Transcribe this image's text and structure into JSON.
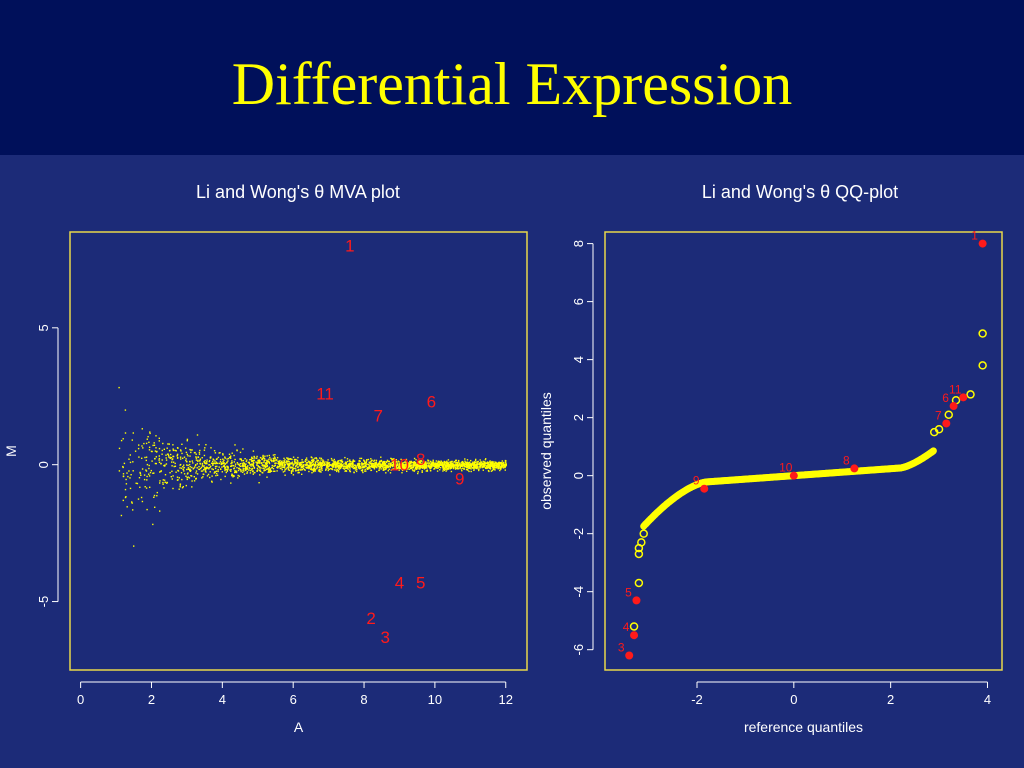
{
  "slide": {
    "title": "Differential Expression"
  },
  "colors": {
    "background": "#00105a",
    "plot_background": "#1c2b78",
    "title": "#ffff00",
    "points": "#ffff00",
    "highlight": "#ff1a1a",
    "frame": "#e8d84a"
  },
  "chart_data": [
    {
      "type": "scatter",
      "title": "Li and Wong's θ MVA plot",
      "xlabel": "A",
      "ylabel": "M",
      "xlim": [
        -0.3,
        12.6
      ],
      "ylim": [
        -7.5,
        8.5
      ],
      "xticks": [
        0,
        2,
        4,
        6,
        8,
        10,
        12
      ],
      "yticks": [
        -5,
        0,
        5
      ],
      "grid": false,
      "cloud": {
        "description_free": true,
        "a_range": [
          1,
          12
        ],
        "m_center": 0
      },
      "series": [
        {
          "values": []
        }
      ],
      "labeled_points": [
        {
          "label": "1",
          "x": 7.6,
          "y": 8.0
        },
        {
          "label": "11",
          "x": 6.9,
          "y": 2.6
        },
        {
          "label": "7",
          "x": 8.4,
          "y": 1.8
        },
        {
          "label": "6",
          "x": 9.9,
          "y": 2.3
        },
        {
          "label": "8",
          "x": 9.6,
          "y": 0.2
        },
        {
          "label": "10",
          "x": 9.0,
          "y": 0.0
        },
        {
          "label": "9",
          "x": 10.7,
          "y": -0.5
        },
        {
          "label": "4",
          "x": 9.0,
          "y": -4.3
        },
        {
          "label": "5",
          "x": 9.6,
          "y": -4.3
        },
        {
          "label": "2",
          "x": 8.2,
          "y": -5.6
        },
        {
          "label": "3",
          "x": 8.6,
          "y": -6.3
        }
      ]
    },
    {
      "type": "scatter",
      "title": "Li and Wong's θ QQ-plot",
      "xlabel": "reference quantiles",
      "ylabel": "observed quantiles",
      "xlim": [
        -3.9,
        4.3
      ],
      "ylim": [
        -6.7,
        8.4
      ],
      "xticks": [
        -2,
        0,
        2,
        4
      ],
      "yticks": [
        -6,
        -4,
        -2,
        0,
        2,
        4,
        6,
        8
      ],
      "grid": false,
      "open_points": [
        {
          "x": 3.9,
          "y": 4.9
        },
        {
          "x": 3.9,
          "y": 3.8
        },
        {
          "x": 3.65,
          "y": 2.8
        },
        {
          "x": 3.35,
          "y": 2.6
        },
        {
          "x": 3.2,
          "y": 2.1
        },
        {
          "x": 3.0,
          "y": 1.6
        },
        {
          "x": 2.9,
          "y": 1.5
        },
        {
          "x": -3.2,
          "y": -3.7
        },
        {
          "x": -3.3,
          "y": -5.2
        },
        {
          "x": -3.2,
          "y": -2.7
        },
        {
          "x": -3.2,
          "y": -2.5
        },
        {
          "x": -3.15,
          "y": -2.3
        },
        {
          "x": -3.1,
          "y": -2.0
        }
      ],
      "labeled_points": [
        {
          "label": "1",
          "x": 3.9,
          "y": 8.0
        },
        {
          "label": "11",
          "x": 3.5,
          "y": 2.7
        },
        {
          "label": "6",
          "x": 3.3,
          "y": 2.4
        },
        {
          "label": "7",
          "x": 3.15,
          "y": 1.8
        },
        {
          "label": "8",
          "x": 1.25,
          "y": 0.25
        },
        {
          "label": "10",
          "x": 0.0,
          "y": 0.0
        },
        {
          "label": "9",
          "x": -1.85,
          "y": -0.45
        },
        {
          "label": "5",
          "x": -3.25,
          "y": -4.3
        },
        {
          "label": "4",
          "x": -3.3,
          "y": -5.5
        },
        {
          "label": "3",
          "x": -3.4,
          "y": -6.2
        }
      ]
    }
  ]
}
